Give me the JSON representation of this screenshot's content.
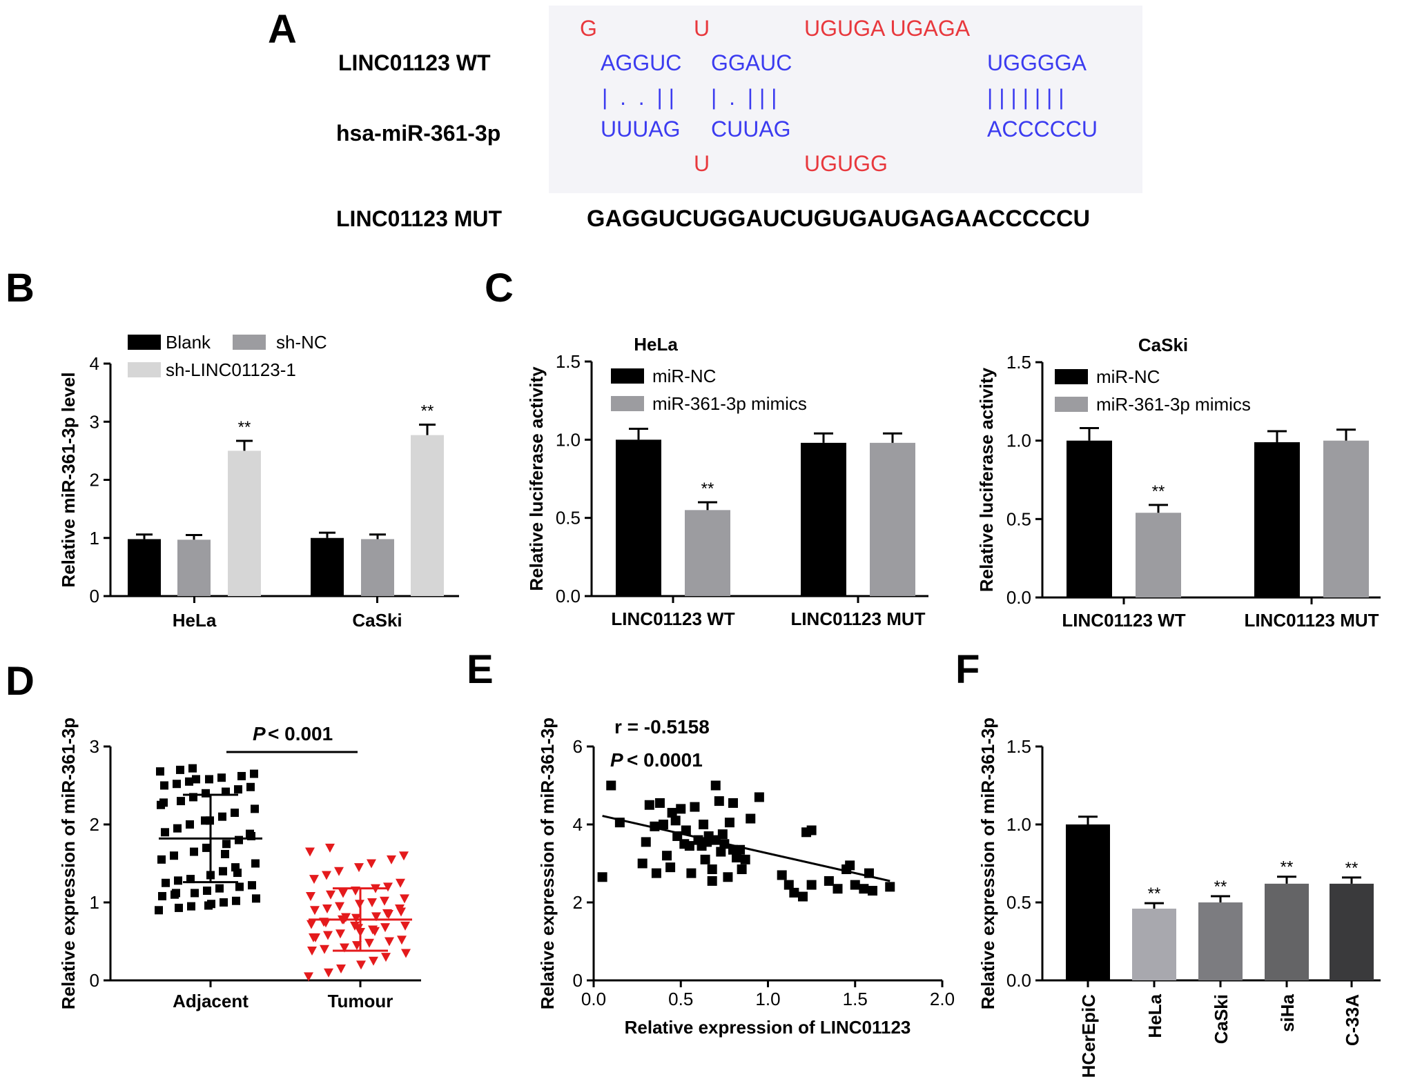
{
  "panel_labels": {
    "a": "A",
    "b": "B",
    "c": "C",
    "d": "D",
    "e": "E",
    "f": "F"
  },
  "colors": {
    "red": "#e8383d",
    "blue": "#3b3bf0",
    "bar_black": "#000000",
    "bar_mid": "#9c9ca0",
    "bar_light": "#d6d6d6",
    "scatter_red": "#e41a1c",
    "alignment_box": "#f4f4f8"
  },
  "alignment": {
    "wt_label": "LINC01123 WT",
    "mir_label": "hsa-miR-361-3p",
    "mut_label": "LINC01123 MUT",
    "top_mismatch": {
      "g": "G",
      "u": "U",
      "rest": "UGUGA UGAGA"
    },
    "wt_paired": {
      "s1": "AGGUC",
      "s2": "GGAUC",
      "s3": "UGGGGA"
    },
    "bonds": {
      "b1": "|  .  .  | |",
      "b2": "|  .  | | |",
      "b3": "| | | | | | |"
    },
    "mir_paired": {
      "s1": "UUUAG",
      "s2": "CUUAG",
      "s3": "ACCCCCU"
    },
    "bottom_mismatch": {
      "u": "U",
      "rest": "UGUGG"
    },
    "mut_sequence": "GAGGUCUGGAUCUGUGAUGAGAACCCCCU"
  },
  "chart_data": [
    {
      "panel": "B",
      "type": "bar",
      "ylabel": "Relative miR-361-3p level",
      "categories": [
        "HeLa",
        "CaSki"
      ],
      "series": [
        {
          "name": "Blank",
          "values": [
            0.98,
            1.0
          ],
          "errors": [
            0.08,
            0.09
          ]
        },
        {
          "name": "sh-NC",
          "values": [
            0.97,
            0.98
          ],
          "errors": [
            0.08,
            0.08
          ]
        },
        {
          "name": "sh-LINC01123-1",
          "values": [
            2.5,
            2.77
          ],
          "errors": [
            0.17,
            0.18
          ]
        }
      ],
      "significance": [
        "",
        "",
        "**"
      ],
      "ylim": [
        0,
        4
      ],
      "yticks": [
        "0",
        "1",
        "2",
        "3",
        "4"
      ]
    },
    {
      "panel": "C",
      "type": "bar",
      "title": "HeLa",
      "ylabel": "Relative luciferase activity",
      "categories": [
        "LINC01123 WT",
        "LINC01123 MUT"
      ],
      "series": [
        {
          "name": "miR-NC",
          "values": [
            1.0,
            0.98
          ],
          "errors": [
            0.07,
            0.06
          ]
        },
        {
          "name": "miR-361-3p mimics",
          "values": [
            0.55,
            0.98
          ],
          "errors": [
            0.05,
            0.06
          ]
        }
      ],
      "significance": [
        "",
        "**"
      ],
      "ylim": [
        0,
        1.5
      ],
      "yticks": [
        "0.0",
        "0.5",
        "1.0",
        "1.5"
      ]
    },
    {
      "panel": "C",
      "type": "bar",
      "title": "CaSki",
      "ylabel": "Relative luciferase activity",
      "categories": [
        "LINC01123 WT",
        "LINC01123 MUT"
      ],
      "series": [
        {
          "name": "miR-NC",
          "values": [
            1.0,
            0.99
          ],
          "errors": [
            0.08,
            0.07
          ]
        },
        {
          "name": "miR-361-3p mimics",
          "values": [
            0.54,
            1.0
          ],
          "errors": [
            0.05,
            0.07
          ]
        }
      ],
      "significance": [
        "",
        "**"
      ],
      "ylim": [
        0,
        1.5
      ],
      "yticks": [
        "0.0",
        "0.5",
        "1.0",
        "1.5"
      ]
    },
    {
      "panel": "D",
      "type": "scatter",
      "ylabel": "Relative expression of miR-361-3p",
      "categories": [
        "Adjacent",
        "Tumour"
      ],
      "series": [
        {
          "name": "Adjacent",
          "mean": 1.82,
          "sd": 0.56,
          "values": [
            0.9,
            0.93,
            0.95,
            0.98,
            1.0,
            1.02,
            1.05,
            1.08,
            1.1,
            1.12,
            1.15,
            1.18,
            1.2,
            1.22,
            1.25,
            1.28,
            1.3,
            1.35,
            1.4,
            1.45,
            1.5,
            1.55,
            1.6,
            1.65,
            1.7,
            1.75,
            1.8,
            1.85,
            1.9,
            1.95,
            2.0,
            2.05,
            2.1,
            2.15,
            2.2,
            2.25,
            2.3,
            2.35,
            2.4,
            2.42,
            2.45,
            2.48,
            2.5,
            2.52,
            2.55,
            2.58,
            2.6,
            2.62,
            2.65,
            2.68,
            2.7,
            2.72,
            2.05,
            1.62,
            1.38,
            1.88,
            2.28,
            1.12,
            2.58,
            0.96
          ]
        },
        {
          "name": "Tumour",
          "mean": 0.78,
          "sd": 0.4,
          "values": [
            0.05,
            0.1,
            0.15,
            0.2,
            0.25,
            0.3,
            0.35,
            0.38,
            0.4,
            0.42,
            0.45,
            0.48,
            0.5,
            0.52,
            0.55,
            0.58,
            0.6,
            0.62,
            0.65,
            0.68,
            0.7,
            0.72,
            0.75,
            0.78,
            0.8,
            0.82,
            0.85,
            0.88,
            0.9,
            0.92,
            0.95,
            0.98,
            1.0,
            1.02,
            1.05,
            1.08,
            1.1,
            1.12,
            1.15,
            1.18,
            1.2,
            1.25,
            1.3,
            1.35,
            1.4,
            1.45,
            1.5,
            1.55,
            1.6,
            1.65,
            1.7,
            0.78,
            0.7,
            0.63,
            0.86,
            0.92,
            0.55,
            0.74,
            0.81,
            0.67
          ]
        }
      ],
      "annotation": "< 0.001",
      "annotation_p": "P",
      "ylim": [
        0,
        3
      ],
      "yticks": [
        "0",
        "1",
        "2",
        "3"
      ]
    },
    {
      "panel": "E",
      "type": "scatter",
      "xlabel": "Relative expression of LINC01123",
      "ylabel": "Relative expression of miR-361-3p",
      "r_text": "r = -0.5158",
      "p_label": "P",
      "p_text": "< 0.0001",
      "points": [
        [
          0.05,
          2.65
        ],
        [
          0.1,
          5.0
        ],
        [
          0.15,
          4.05
        ],
        [
          0.28,
          3.0
        ],
        [
          0.3,
          3.55
        ],
        [
          0.32,
          4.5
        ],
        [
          0.35,
          3.95
        ],
        [
          0.36,
          2.75
        ],
        [
          0.38,
          4.55
        ],
        [
          0.4,
          4.0
        ],
        [
          0.42,
          3.2
        ],
        [
          0.44,
          2.9
        ],
        [
          0.45,
          4.3
        ],
        [
          0.47,
          4.1
        ],
        [
          0.48,
          3.7
        ],
        [
          0.5,
          4.4
        ],
        [
          0.52,
          3.5
        ],
        [
          0.53,
          3.85
        ],
        [
          0.55,
          3.45
        ],
        [
          0.56,
          2.75
        ],
        [
          0.58,
          4.45
        ],
        [
          0.6,
          3.6
        ],
        [
          0.62,
          3.45
        ],
        [
          0.63,
          4.0
        ],
        [
          0.64,
          3.1
        ],
        [
          0.65,
          3.55
        ],
        [
          0.66,
          3.7
        ],
        [
          0.68,
          2.55
        ],
        [
          0.68,
          2.85
        ],
        [
          0.7,
          5.0
        ],
        [
          0.7,
          3.6
        ],
        [
          0.72,
          4.6
        ],
        [
          0.73,
          3.3
        ],
        [
          0.74,
          3.75
        ],
        [
          0.75,
          3.5
        ],
        [
          0.77,
          2.65
        ],
        [
          0.78,
          4.05
        ],
        [
          0.8,
          4.55
        ],
        [
          0.8,
          3.35
        ],
        [
          0.82,
          3.15
        ],
        [
          0.84,
          3.35
        ],
        [
          0.85,
          2.85
        ],
        [
          0.87,
          3.1
        ],
        [
          0.9,
          4.15
        ],
        [
          0.95,
          4.7
        ],
        [
          1.08,
          2.7
        ],
        [
          1.12,
          2.45
        ],
        [
          1.15,
          2.25
        ],
        [
          1.2,
          2.15
        ],
        [
          1.22,
          3.8
        ],
        [
          1.25,
          3.85
        ],
        [
          1.25,
          2.45
        ],
        [
          1.35,
          2.55
        ],
        [
          1.4,
          2.35
        ],
        [
          1.45,
          2.85
        ],
        [
          1.47,
          2.95
        ],
        [
          1.5,
          2.45
        ],
        [
          1.55,
          2.35
        ],
        [
          1.58,
          2.75
        ],
        [
          1.6,
          2.3
        ],
        [
          1.7,
          2.4
        ]
      ],
      "fit": {
        "x": [
          0.05,
          1.7
        ],
        "y": [
          4.22,
          2.55
        ]
      },
      "xlim": [
        0,
        2.0
      ],
      "ylim": [
        0,
        6
      ],
      "xticks": [
        "0.0",
        "0.5",
        "1.0",
        "1.5",
        "2.0"
      ],
      "yticks": [
        "0",
        "2",
        "4",
        "6"
      ]
    },
    {
      "panel": "F",
      "type": "bar",
      "ylabel": "Relative expression of miR-361-3p",
      "categories": [
        "HCerEpiC",
        "HeLa",
        "CaSki",
        "siHa",
        "C-33A"
      ],
      "values": [
        1.0,
        0.46,
        0.5,
        0.62,
        0.62
      ],
      "errors": [
        0.05,
        0.035,
        0.04,
        0.045,
        0.04
      ],
      "bar_colors": [
        "#000000",
        "#a8a8ae",
        "#7c7c80",
        "#646466",
        "#3a3a3c"
      ],
      "significance": [
        "",
        "**",
        "**",
        "**",
        "**"
      ],
      "ylim": [
        0,
        1.5
      ],
      "yticks": [
        "0.0",
        "0.5",
        "1.0",
        "1.5"
      ]
    }
  ]
}
